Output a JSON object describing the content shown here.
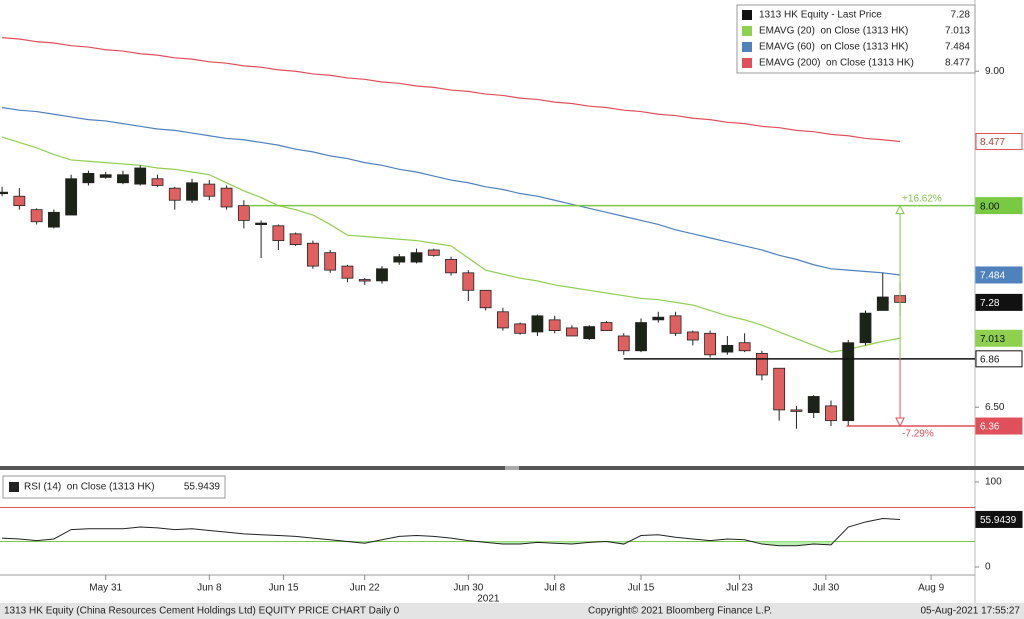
{
  "chart_data": [
    {
      "type": "candlestick",
      "name": "1313 HK Equity - Last Price",
      "up_color": "#1c2418",
      "down_color": "#e06060",
      "xlim": [
        -0.12,
        56.34
      ],
      "ylim": [
        6.07,
        9.53
      ],
      "yticks": [
        {
          "value": 9,
          "label": "9.00"
        },
        {
          "value": 6.5,
          "label": "6.50"
        }
      ],
      "ohlc": {
        "open": [
          8.1,
          8.07,
          7.97,
          7.84,
          7.93,
          8.17,
          8.21,
          8.17,
          8.16,
          8.2,
          8.13,
          8.04,
          8.16,
          8.13,
          8.0,
          7.87,
          7.85,
          7.79,
          7.72,
          7.65,
          7.55,
          7.45,
          7.44,
          7.58,
          7.58,
          7.67,
          7.6,
          7.5,
          7.37,
          7.21,
          7.12,
          7.06,
          7.15,
          7.09,
          7.01,
          7.13,
          7.03,
          6.92,
          7.15,
          7.18,
          7.06,
          7.05,
          6.91,
          6.98,
          6.9,
          6.79,
          6.48,
          6.46,
          6.51,
          6.4,
          6.98,
          7.22,
          7.33
        ],
        "high": [
          8.14,
          8.13,
          7.98,
          7.97,
          8.23,
          8.26,
          8.25,
          8.26,
          8.3,
          8.23,
          8.14,
          8.2,
          8.19,
          8.15,
          8.04,
          7.89,
          7.86,
          7.8,
          7.74,
          7.67,
          7.56,
          7.46,
          7.55,
          7.64,
          7.68,
          7.68,
          7.62,
          7.52,
          7.37,
          7.24,
          7.13,
          7.19,
          7.18,
          7.11,
          7.11,
          7.14,
          7.05,
          7.16,
          7.21,
          7.21,
          7.07,
          7.07,
          7.03,
          7.05,
          6.92,
          6.79,
          6.51,
          6.59,
          6.55,
          7.0,
          7.22,
          7.5,
          7.43
        ],
        "low": [
          8.07,
          7.97,
          7.86,
          7.83,
          7.93,
          8.15,
          8.2,
          8.16,
          8.15,
          8.14,
          7.97,
          8.02,
          8.04,
          7.97,
          7.83,
          7.61,
          7.67,
          7.7,
          7.53,
          7.5,
          7.43,
          7.41,
          7.42,
          7.56,
          7.57,
          7.62,
          7.48,
          7.29,
          7.22,
          7.07,
          7.04,
          7.03,
          7.05,
          7.03,
          7.0,
          7.07,
          6.89,
          6.91,
          7.13,
          7.03,
          6.96,
          6.87,
          6.89,
          6.91,
          6.7,
          6.4,
          6.34,
          6.42,
          6.36,
          6.36,
          6.96,
          7.22,
          7.18
        ],
        "close": [
          8.1,
          8.0,
          7.88,
          7.95,
          8.2,
          8.24,
          8.23,
          8.23,
          8.28,
          8.15,
          8.04,
          8.17,
          8.07,
          7.99,
          7.89,
          7.87,
          7.74,
          7.71,
          7.55,
          7.52,
          7.46,
          7.44,
          7.53,
          7.62,
          7.65,
          7.63,
          7.5,
          7.37,
          7.24,
          7.09,
          7.05,
          7.18,
          7.07,
          7.03,
          7.1,
          7.07,
          6.92,
          7.13,
          7.17,
          7.05,
          7.0,
          6.89,
          6.96,
          6.92,
          6.74,
          6.48,
          6.47,
          6.58,
          6.4,
          6.98,
          7.2,
          7.32,
          7.28
        ]
      },
      "series": [
        {
          "name": "EMAVG (20)  on Close (1313 HK)",
          "color": "#8fd14f",
          "values": [
            8.51,
            8.47,
            8.43,
            8.38,
            8.34,
            8.33,
            8.32,
            8.31,
            8.3,
            8.28,
            8.27,
            8.25,
            8.23,
            8.17,
            8.11,
            8.06,
            8.0,
            7.97,
            7.93,
            7.86,
            7.78,
            7.77,
            7.76,
            7.75,
            7.74,
            7.72,
            7.7,
            7.61,
            7.52,
            7.49,
            7.46,
            7.44,
            7.41,
            7.39,
            7.37,
            7.35,
            7.33,
            7.31,
            7.3,
            7.28,
            7.26,
            7.22,
            7.18,
            7.15,
            7.11,
            7.06,
            7.01,
            6.96,
            6.91,
            6.93,
            6.96,
            6.99,
            7.013
          ]
        },
        {
          "name": "EMAVG (60)  on Close (1313 HK)",
          "color": "#4f81bd",
          "values": [
            8.73,
            8.71,
            8.7,
            8.68,
            8.66,
            8.64,
            8.63,
            8.61,
            8.59,
            8.57,
            8.56,
            8.54,
            8.52,
            8.5,
            8.49,
            8.47,
            8.45,
            8.42,
            8.4,
            8.37,
            8.35,
            8.32,
            8.3,
            8.27,
            8.25,
            8.22,
            8.19,
            8.17,
            8.14,
            8.12,
            8.09,
            8.07,
            8.04,
            8.01,
            7.98,
            7.95,
            7.92,
            7.89,
            7.86,
            7.82,
            7.79,
            7.76,
            7.73,
            7.7,
            7.67,
            7.63,
            7.6,
            7.56,
            7.53,
            7.52,
            7.51,
            7.5,
            7.484
          ]
        },
        {
          "name": "EMAVG (200)  on Close (1313 HK)",
          "color": "#e0505a",
          "values": [
            9.25,
            9.24,
            9.22,
            9.21,
            9.19,
            9.18,
            9.16,
            9.15,
            9.13,
            9.12,
            9.1,
            9.09,
            9.07,
            9.06,
            9.04,
            9.03,
            9.01,
            9.0,
            8.98,
            8.97,
            8.95,
            8.94,
            8.92,
            8.91,
            8.89,
            8.88,
            8.86,
            8.85,
            8.83,
            8.82,
            8.8,
            8.79,
            8.77,
            8.76,
            8.74,
            8.73,
            8.71,
            8.7,
            8.68,
            8.67,
            8.65,
            8.64,
            8.62,
            8.61,
            8.59,
            8.58,
            8.56,
            8.55,
            8.53,
            8.52,
            8.5,
            8.49,
            8.477
          ]
        }
      ],
      "levels": [
        {
          "value": 8,
          "label": "8.00",
          "color": "#7ac943",
          "change": "+16.62%"
        },
        {
          "value": 6.86,
          "color": "#111111"
        },
        {
          "value": 6.36,
          "color": "#e0505a",
          "change": "-7.29%"
        }
      ]
    },
    {
      "type": "line",
      "xlim": [
        -0.12,
        56.34
      ],
      "ylim": [
        -9.4,
        114.1
      ],
      "yticks": [
        100,
        0
      ],
      "xticks": [
        {
          "value": 6,
          "label": "May 31"
        },
        {
          "value": 12,
          "label": "Jun 8"
        },
        {
          "value": 16.3,
          "label": "Jun 15"
        },
        {
          "value": 21,
          "label": "Jun 22"
        },
        {
          "value": 27,
          "label": "Jun 30"
        },
        {
          "value": 32,
          "label": "Jul 8"
        },
        {
          "value": 37,
          "label": "Jul 15"
        },
        {
          "value": 42.7,
          "label": "Jul 23"
        },
        {
          "value": 47.7,
          "label": "Jul 30"
        },
        {
          "value": 53.8,
          "label": "Aug 9"
        }
      ],
      "year_label": "2021",
      "series": [
        {
          "name": "RSI (14)  on Close (1313 HK)",
          "color": "#222222",
          "values": [
            34,
            33,
            31,
            33,
            44,
            45,
            45,
            45,
            47,
            46,
            44,
            45,
            43,
            41,
            39,
            38,
            37,
            36,
            34,
            32,
            30,
            28,
            32,
            36,
            37,
            36,
            34,
            31,
            29,
            27,
            27,
            29,
            28,
            27,
            29,
            30,
            27,
            37,
            38,
            35,
            33,
            31,
            33,
            32,
            27,
            25,
            25,
            27,
            26,
            47,
            53,
            57,
            55.9439
          ]
        }
      ],
      "levels": [
        {
          "value": 70,
          "color": "#e0505a"
        },
        {
          "value": 30,
          "color": "#7ac943"
        }
      ]
    }
  ],
  "footer": {
    "left": "1313 HK Equity (China Resources Cement Holdings Ltd) EQUITY PRICE CHART  Daily 0",
    "center": "Copyright© 2021 Bloomberg Finance L.P.",
    "right": "05-Aug-2021 17:55:27"
  }
}
